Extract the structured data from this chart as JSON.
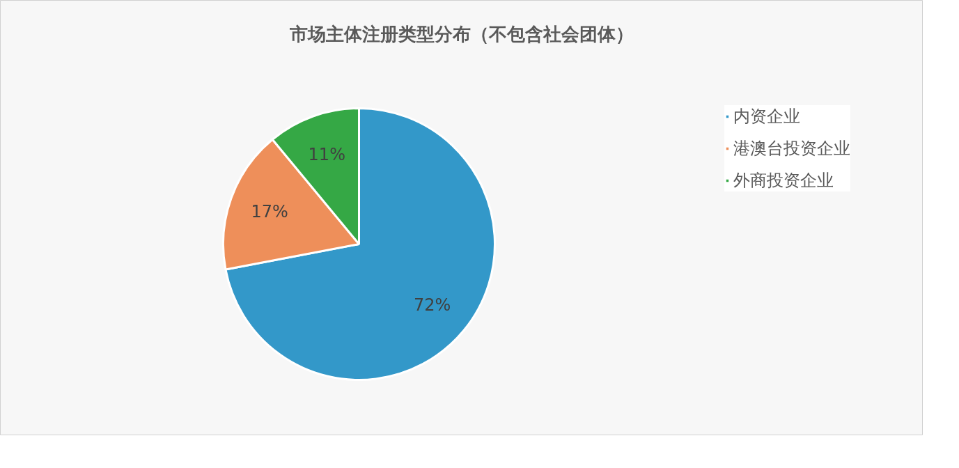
{
  "chart_data": {
    "type": "pie",
    "title": "市场主体注册类型分布（不包含社会团体）",
    "categories": [
      "内资企业",
      "港澳台投资企业",
      "外商投资企业"
    ],
    "values": [
      72,
      17,
      11
    ],
    "colors": [
      "#3398c9",
      "#ee8f5a",
      "#35a845"
    ],
    "value_labels": [
      "72%",
      "17%",
      "11%"
    ],
    "legend": "right"
  }
}
